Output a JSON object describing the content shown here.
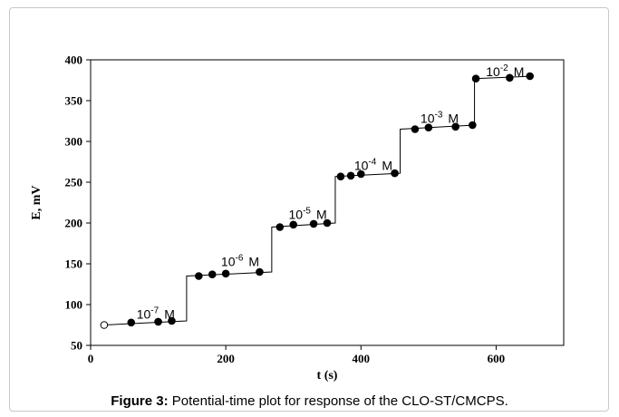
{
  "chart_data": {
    "type": "line",
    "xlabel": "t (s)",
    "ylabel": "E, mV",
    "xlim": [
      0,
      700
    ],
    "ylim": [
      50,
      400
    ],
    "x_ticks": [
      0,
      200,
      400,
      600
    ],
    "y_ticks": [
      50,
      100,
      150,
      200,
      250,
      300,
      350,
      400
    ],
    "grid": false,
    "series": [
      {
        "marker": "filled-circle",
        "x": [
          20,
          60,
          100,
          120,
          160,
          180,
          200,
          250,
          280,
          300,
          330,
          350,
          370,
          385,
          400,
          450,
          480,
          500,
          540,
          565,
          570,
          620,
          650
        ],
        "y": [
          75,
          78,
          79,
          80,
          135,
          137,
          138,
          140,
          195,
          198,
          199,
          200,
          257,
          258,
          260,
          261,
          315,
          317,
          318,
          320,
          377,
          378,
          380
        ],
        "open_marker_index": [
          0
        ]
      }
    ],
    "step_line": {
      "x": [
        20,
        142,
        142,
        268,
        268,
        362,
        362,
        458,
        458,
        568,
        568,
        655
      ],
      "y": [
        75,
        80,
        135,
        140,
        195,
        200,
        257,
        261,
        315,
        320,
        377,
        380
      ]
    },
    "concentration_labels": [
      {
        "base": "10",
        "exponent": "-7",
        "unit": "M",
        "x": 68,
        "y": 83
      },
      {
        "base": "10",
        "exponent": "-6",
        "unit": "M",
        "x": 193,
        "y": 147
      },
      {
        "base": "10",
        "exponent": "-5",
        "unit": "M",
        "x": 293,
        "y": 205
      },
      {
        "base": "10",
        "exponent": "-4",
        "unit": "M",
        "x": 390,
        "y": 265
      },
      {
        "base": "10",
        "exponent": "-3",
        "unit": "M",
        "x": 488,
        "y": 323
      },
      {
        "base": "10",
        "exponent": "-2",
        "unit": "M",
        "x": 585,
        "y": 380
      }
    ]
  },
  "caption": {
    "label": "Figure 3:",
    "text": " Potential-time plot for response of the CLO-ST/CMCPS."
  }
}
